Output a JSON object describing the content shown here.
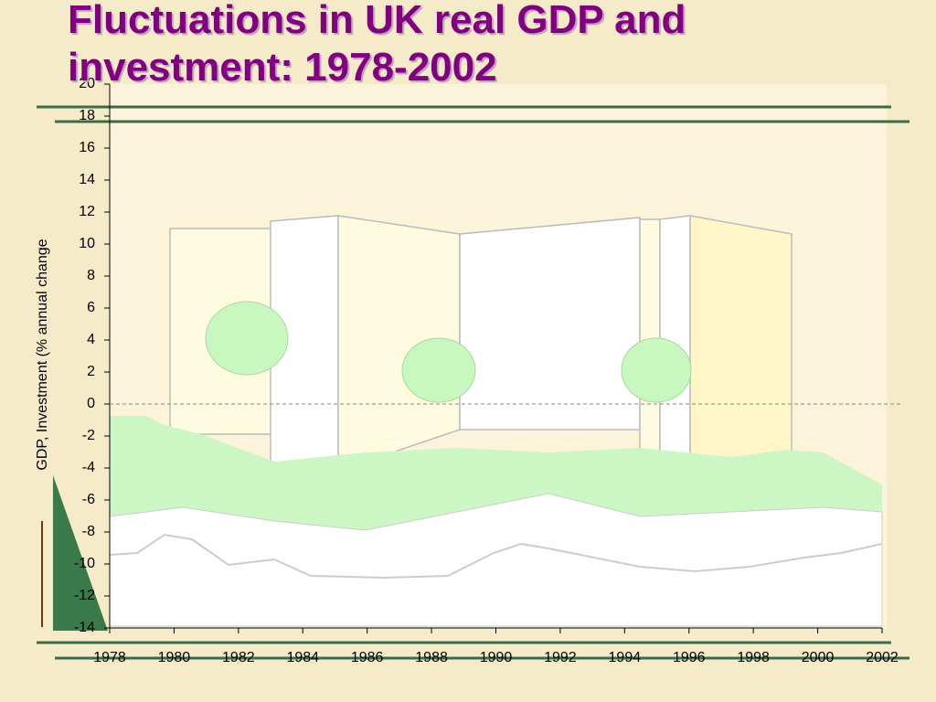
{
  "chart_data": {
    "type": "line",
    "title": "Fluctuations in UK real GDP and investment: 1978-2002",
    "y_label": "GDP, Investment (% annual change",
    "xlim": [
      1978,
      2002
    ],
    "xticks": [
      1978,
      1980,
      1982,
      1984,
      1986,
      1988,
      1990,
      1992,
      1994,
      1996,
      1998,
      2000,
      2002
    ],
    "ylim": [
      -14,
      20
    ],
    "yticks": [
      -14,
      -12,
      -10,
      -8,
      -6,
      -4,
      -2,
      0,
      2,
      4,
      6,
      8,
      10,
      12,
      14,
      16,
      18,
      20
    ],
    "series": []
  }
}
